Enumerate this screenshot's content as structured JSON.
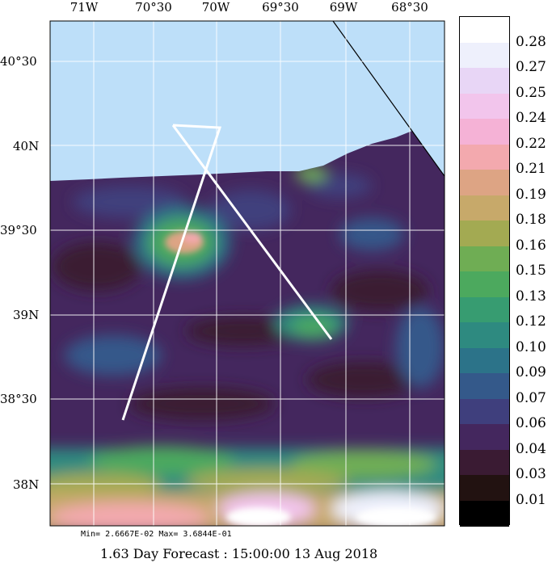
{
  "map": {
    "lon_labels": [
      "71W",
      "70°30",
      "70W",
      "69°30",
      "69W",
      "68°30"
    ],
    "lat_labels": [
      "40°30",
      "40N",
      "39°30",
      "39N",
      "38°30",
      "38N"
    ],
    "colors": {
      "land": "#bddff9",
      "track": "#ffffff",
      "grid": "#ffffff",
      "coastline": "#000000"
    },
    "grid_lines": true
  },
  "colorbar": {
    "labels": [
      "0.28",
      "0.27",
      "0.25",
      "0.24",
      "0.22",
      "0.21",
      "0.19",
      "0.18",
      "0.16",
      "0.15",
      "0.13",
      "0.12",
      "0.10",
      "0.09",
      "0.07",
      "0.06",
      "0.04",
      "0.03",
      "0.01"
    ],
    "colors": [
      "#ffffff",
      "#eef0fc",
      "#e8d6f6",
      "#f2c5ec",
      "#f5b2d6",
      "#f3a9ae",
      "#dda484",
      "#c7a96a",
      "#a3aa52",
      "#6fad54",
      "#4ca95e",
      "#379c71",
      "#2e8a80",
      "#2c7389",
      "#34598a",
      "#3f3f7d",
      "#44275e",
      "#3a1b33",
      "#221211",
      "#000000"
    ]
  },
  "annotations": {
    "minmax": "Min= 2.6667E-02  Max= 3.6844E-01",
    "footer": "1.63 Day Forecast : 15:00:00  13 Aug 2018"
  }
}
